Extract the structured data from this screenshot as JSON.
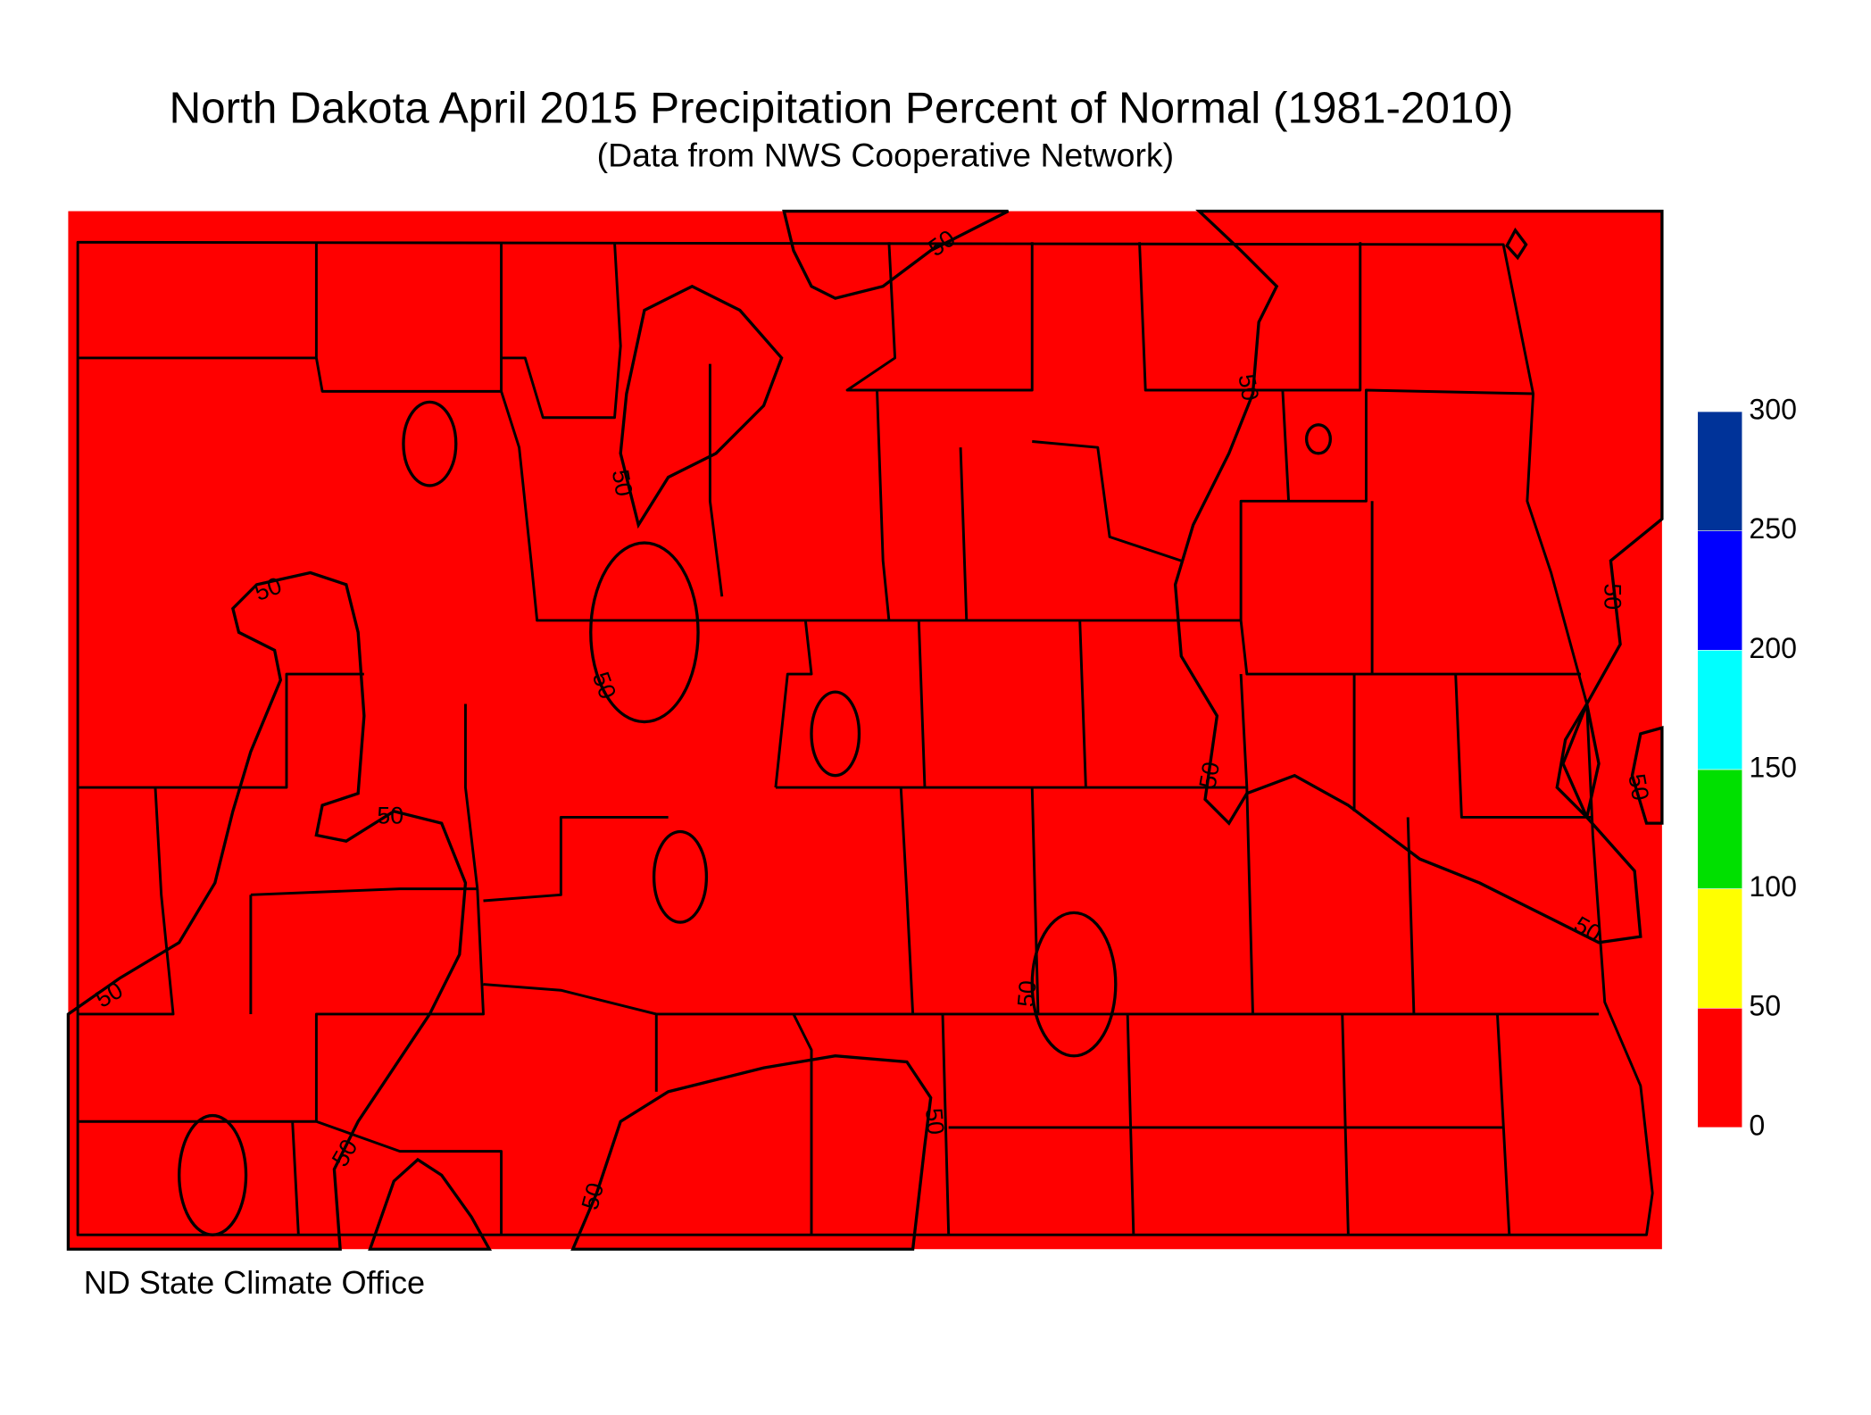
{
  "title": "North Dakota April 2015 Precipitation Percent of Normal (1981-2010)",
  "subtitle": "(Data from NWS Cooperative Network)",
  "credit": "ND State Climate Office",
  "contour_level": 50,
  "legend": {
    "ticks": [
      0,
      50,
      100,
      150,
      200,
      250,
      300
    ],
    "colors": [
      "#ff0000",
      "#ffff00",
      "#00e000",
      "#00ffff",
      "#0000ff",
      "#003399"
    ]
  }
}
